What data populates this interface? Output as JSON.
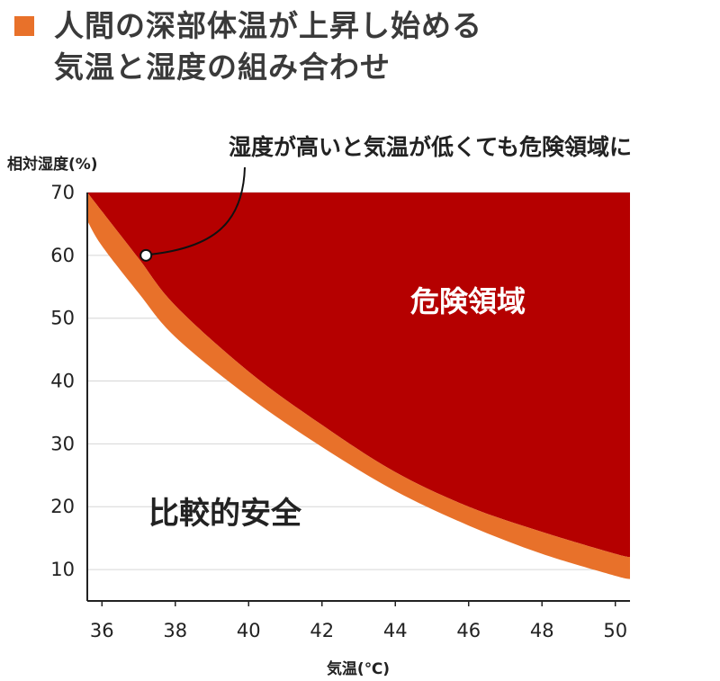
{
  "colors": {
    "danger": "#b50000",
    "band": "#e8712a",
    "legend": "#e8712a",
    "grid": "#d6d6d6",
    "axis": "#222222"
  },
  "chart_data": {
    "type": "area",
    "title": "人間の深部体温が上昇し始める\n気温と湿度の組み合わせ",
    "legend": [
      "人間の深部体温が上昇し始める気温と湿度の組み合わせ"
    ],
    "xlabel": "気温(℃)",
    "ylabel": "相対湿度(%)",
    "xlim": [
      35.6,
      50.4
    ],
    "ylim": [
      5,
      70
    ],
    "x_ticks": [
      36,
      38,
      40,
      42,
      44,
      46,
      48,
      50
    ],
    "y_ticks": [
      10,
      20,
      30,
      40,
      50,
      60,
      70
    ],
    "grid": true,
    "series": [
      {
        "name": "",
        "x": [
          35.6,
          36,
          37,
          38,
          40,
          42,
          44,
          46,
          48,
          50,
          50.4
        ],
        "y_lower": [
          65.5,
          61.5,
          54,
          47,
          37.5,
          29.5,
          22.5,
          17,
          12.5,
          9,
          8.5
        ],
        "y_upper": [
          70,
          67,
          59.5,
          52,
          41.5,
          33,
          25.5,
          20,
          16,
          12.5,
          12
        ]
      }
    ],
    "annotations": [
      {
        "text": "湿度が高いと気温が低くても危険領域に",
        "x": 37.2,
        "y": 60
      },
      {
        "text": "危険領域"
      },
      {
        "text": "比較的安全"
      }
    ]
  }
}
